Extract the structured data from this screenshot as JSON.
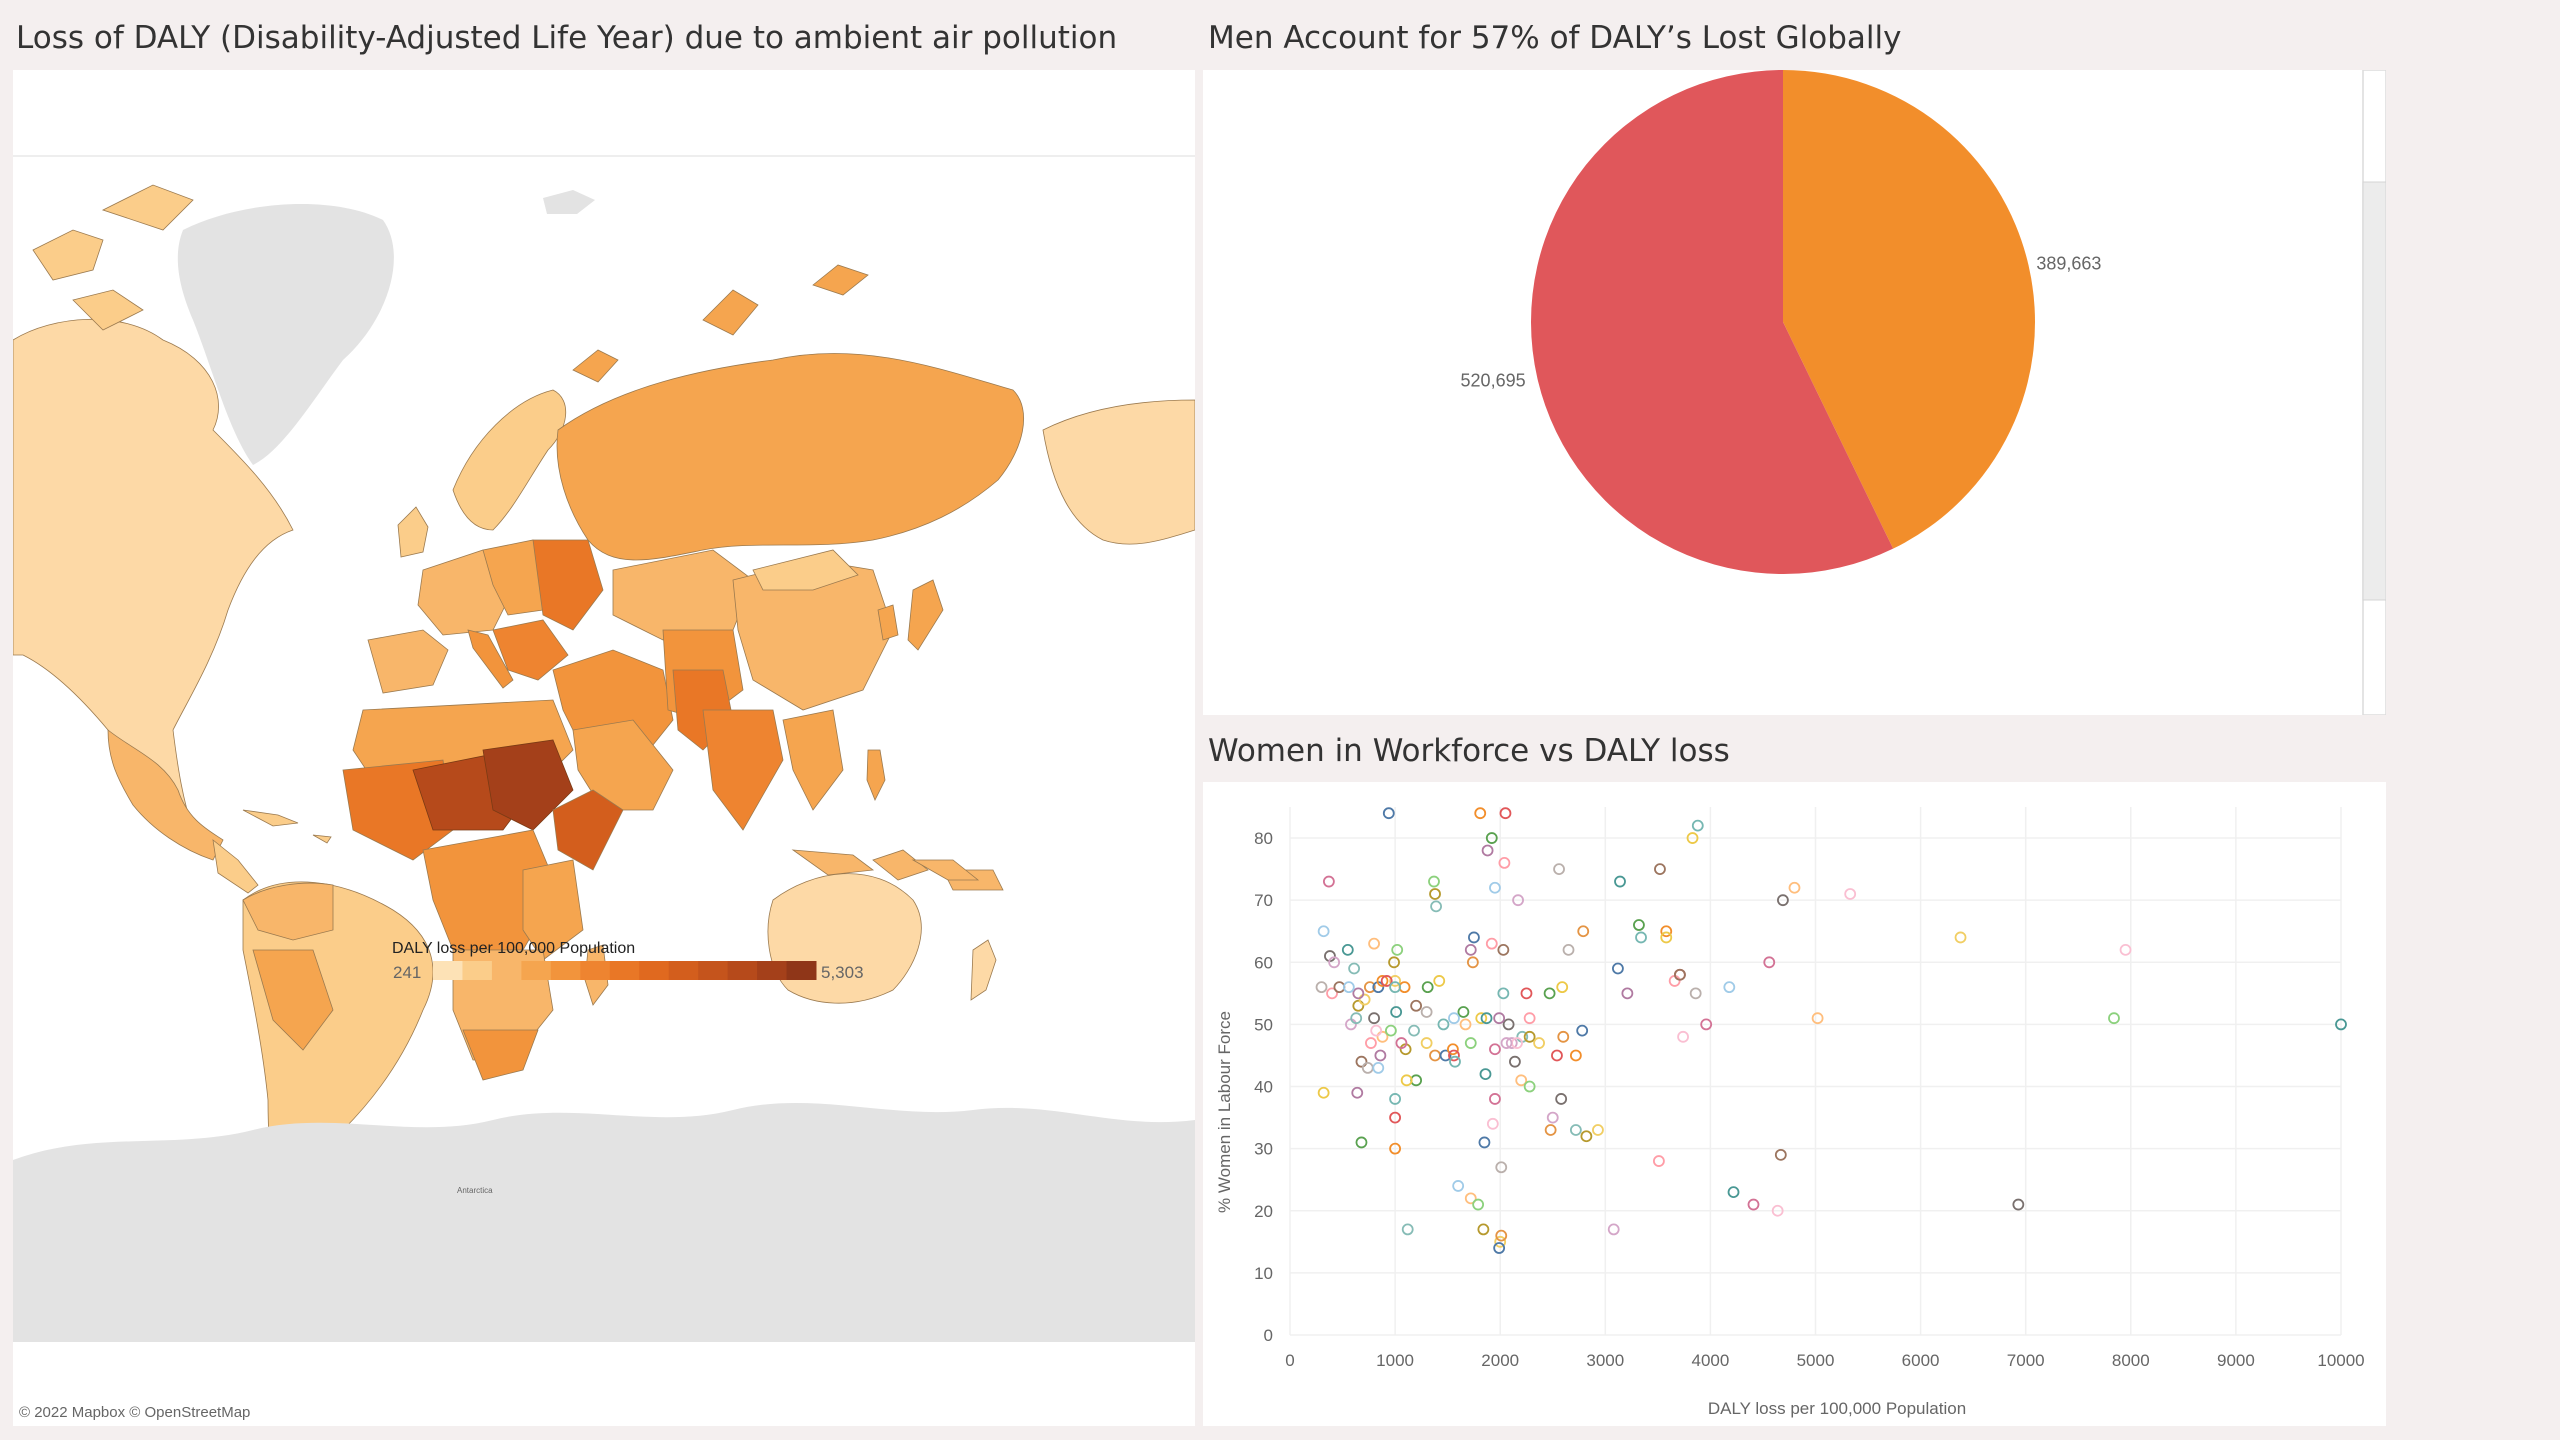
{
  "map": {
    "title": "Loss of DALY (Disability-Adjusted Life Year) due to ambient air pollution",
    "legend_title": "DALY loss per 100,000 Population",
    "legend_min": "241",
    "legend_max": "5,303",
    "region_label": "Antarctica",
    "attribution": "© 2022 Mapbox © OpenStreetMap",
    "color_steps": [
      "#fde2b6",
      "#fbcd8a",
      "#f8b66a",
      "#f5a54f",
      "#f2943c",
      "#ee8430",
      "#e97726",
      "#e0691f",
      "#d35e1d",
      "#c5541c",
      "#b64a1b",
      "#a4401a",
      "#8f3618"
    ]
  },
  "pie": {
    "title": "Men Account for  57% of DALY’s Lost Globally",
    "colors": {
      "men": "#e0575b",
      "women": "#f28e2b"
    },
    "chart_data": {
      "type": "pie",
      "values": [
        389663,
        520695
      ],
      "labels": [
        "389,663",
        "520,695"
      ]
    }
  },
  "scatter": {
    "title": "Women in Workforce vs DALY loss",
    "chart_data": {
      "type": "scatter",
      "xlabel": "DALY loss per 100,000 Population",
      "ylabel": "% Women in Labour Force",
      "xlim": [
        0,
        10000
      ],
      "ylim": [
        0,
        85
      ],
      "xticks": [
        0,
        1000,
        2000,
        3000,
        4000,
        5000,
        6000,
        7000,
        8000,
        9000,
        10000
      ],
      "yticks": [
        0,
        10,
        20,
        30,
        40,
        50,
        60,
        70,
        80
      ],
      "palette": [
        "#4e79a7",
        "#f28e2b",
        "#e15759",
        "#76b7b2",
        "#59a14f",
        "#edc948",
        "#b07aa1",
        "#ff9da7",
        "#9c755f",
        "#bab0ac",
        "#a0cbe8",
        "#ffbe7d",
        "#8cd17d",
        "#499894",
        "#d37295",
        "#fabfd2",
        "#79706e",
        "#d4a6c8",
        "#86bcb6",
        "#b6992d",
        "#f1ce63",
        "#e49444"
      ],
      "points": [
        [
          940,
          84
        ],
        [
          1810,
          84
        ],
        [
          2050,
          84
        ],
        [
          3880,
          82
        ],
        [
          1920,
          80
        ],
        [
          3830,
          80
        ],
        [
          1880,
          78
        ],
        [
          2040,
          76
        ],
        [
          3520,
          75
        ],
        [
          2560,
          75
        ],
        [
          1950,
          72
        ],
        [
          4800,
          72
        ],
        [
          1370,
          73
        ],
        [
          3140,
          73
        ],
        [
          370,
          73
        ],
        [
          5330,
          71
        ],
        [
          4690,
          70
        ],
        [
          2170,
          70
        ],
        [
          1390,
          69
        ],
        [
          1380,
          71
        ],
        [
          6380,
          64
        ],
        [
          2790,
          65
        ],
        [
          1750,
          64
        ],
        [
          3580,
          65
        ],
        [
          3710,
          58
        ],
        [
          3340,
          64
        ],
        [
          3320,
          66
        ],
        [
          3580,
          64
        ],
        [
          1720,
          62
        ],
        [
          1920,
          63
        ],
        [
          2030,
          62
        ],
        [
          2650,
          62
        ],
        [
          320,
          65
        ],
        [
          800,
          63
        ],
        [
          1020,
          62
        ],
        [
          550,
          62
        ],
        [
          4560,
          60
        ],
        [
          7950,
          62
        ],
        [
          380,
          61
        ],
        [
          420,
          60
        ],
        [
          610,
          59
        ],
        [
          990,
          60
        ],
        [
          1000,
          57
        ],
        [
          1740,
          60
        ],
        [
          3120,
          59
        ],
        [
          1090,
          56
        ],
        [
          2250,
          55
        ],
        [
          2030,
          55
        ],
        [
          2470,
          55
        ],
        [
          2590,
          56
        ],
        [
          3210,
          55
        ],
        [
          3660,
          57
        ],
        [
          3710,
          58
        ],
        [
          3860,
          55
        ],
        [
          4180,
          56
        ],
        [
          5020,
          51
        ],
        [
          7840,
          51
        ],
        [
          10000,
          50
        ],
        [
          3960,
          50
        ],
        [
          3740,
          48
        ],
        [
          2080,
          50
        ],
        [
          2110,
          47
        ],
        [
          2210,
          48
        ],
        [
          2280,
          48
        ],
        [
          2370,
          47
        ],
        [
          2600,
          48
        ],
        [
          2780,
          49
        ],
        [
          2720,
          45
        ],
        [
          2540,
          45
        ],
        [
          1460,
          50
        ],
        [
          1650,
          52
        ],
        [
          1820,
          51
        ],
        [
          1990,
          51
        ],
        [
          2280,
          51
        ],
        [
          1200,
          53
        ],
        [
          1300,
          52
        ],
        [
          1560,
          51
        ],
        [
          1670,
          50
        ],
        [
          1720,
          47
        ],
        [
          1870,
          51
        ],
        [
          1950,
          46
        ],
        [
          2160,
          47
        ],
        [
          2140,
          44
        ],
        [
          2060,
          47
        ],
        [
          1180,
          49
        ],
        [
          1100,
          46
        ],
        [
          1300,
          47
        ],
        [
          1380,
          45
        ],
        [
          1480,
          45
        ],
        [
          1550,
          46
        ],
        [
          1560,
          45
        ],
        [
          1570,
          44
        ],
        [
          1200,
          41
        ],
        [
          1110,
          41
        ],
        [
          860,
          45
        ],
        [
          770,
          47
        ],
        [
          680,
          44
        ],
        [
          740,
          43
        ],
        [
          840,
          43
        ],
        [
          880,
          48
        ],
        [
          960,
          49
        ],
        [
          1010,
          52
        ],
        [
          1060,
          47
        ],
        [
          820,
          49
        ],
        [
          800,
          51
        ],
        [
          580,
          50
        ],
        [
          630,
          51
        ],
        [
          650,
          53
        ],
        [
          710,
          54
        ],
        [
          760,
          56
        ],
        [
          840,
          56
        ],
        [
          880,
          57
        ],
        [
          920,
          57
        ],
        [
          1000,
          56
        ],
        [
          1310,
          56
        ],
        [
          1420,
          57
        ],
        [
          650,
          55
        ],
        [
          400,
          55
        ],
        [
          470,
          56
        ],
        [
          300,
          56
        ],
        [
          560,
          56
        ],
        [
          2200,
          41
        ],
        [
          2280,
          40
        ],
        [
          1860,
          42
        ],
        [
          1950,
          38
        ],
        [
          1930,
          34
        ],
        [
          2580,
          38
        ],
        [
          2500,
          35
        ],
        [
          2720,
          33
        ],
        [
          2820,
          32
        ],
        [
          2930,
          33
        ],
        [
          2480,
          33
        ],
        [
          1850,
          31
        ],
        [
          1000,
          30
        ],
        [
          1000,
          35
        ],
        [
          1000,
          38
        ],
        [
          680,
          31
        ],
        [
          320,
          39
        ],
        [
          640,
          39
        ],
        [
          3510,
          28
        ],
        [
          4670,
          29
        ],
        [
          2010,
          27
        ],
        [
          1600,
          24
        ],
        [
          1720,
          22
        ],
        [
          1790,
          21
        ],
        [
          4220,
          23
        ],
        [
          4410,
          21
        ],
        [
          4640,
          20
        ],
        [
          6930,
          21
        ],
        [
          3080,
          17
        ],
        [
          1120,
          17
        ],
        [
          1840,
          17
        ],
        [
          2000,
          15
        ],
        [
          2010,
          16
        ],
        [
          1990,
          14
        ]
      ]
    }
  }
}
